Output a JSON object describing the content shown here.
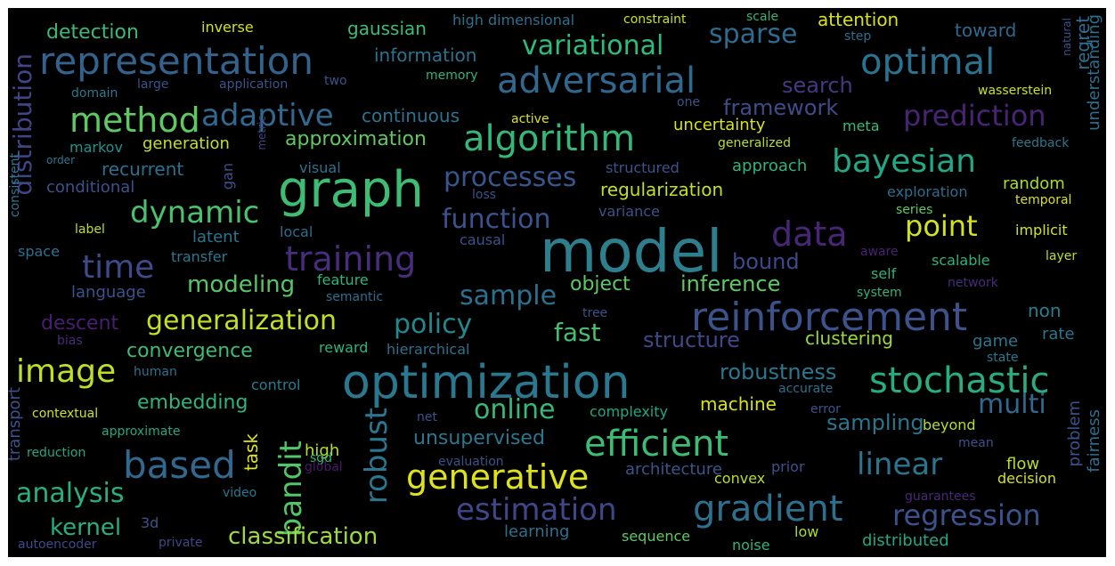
{
  "words": [
    {
      "text": "model",
      "color": "#2e7f8e",
      "rot": 0
    },
    {
      "text": "graph",
      "color": "#3fbc73",
      "rot": 0
    },
    {
      "text": "optimization",
      "color": "#2a788e",
      "rot": 0
    },
    {
      "text": "reinforcement",
      "color": "#3b528b",
      "rot": 0
    },
    {
      "text": "algorithm",
      "color": "#35b779",
      "rot": 0
    },
    {
      "text": "adversarial",
      "color": "#31688e",
      "rot": 0
    },
    {
      "text": "representation",
      "color": "#33638d",
      "rot": 0
    },
    {
      "text": "optimal",
      "color": "#2c728e",
      "rot": 0
    },
    {
      "text": "data",
      "color": "#482677",
      "rot": 0
    },
    {
      "text": "efficient",
      "color": "#3dbc74",
      "rot": 0
    },
    {
      "text": "based",
      "color": "#31688e",
      "rot": 0
    },
    {
      "text": "generative",
      "color": "#dde318",
      "rot": 0
    },
    {
      "text": "gradient",
      "color": "#2d708e",
      "rot": 0
    },
    {
      "text": "stochastic",
      "color": "#27ad81",
      "rot": 0
    },
    {
      "text": "image",
      "color": "#bddf26",
      "rot": 0
    },
    {
      "text": "method",
      "color": "#5ec962",
      "rot": 0
    },
    {
      "text": "training",
      "color": "#472d7b",
      "rot": 0
    },
    {
      "text": "bayesian",
      "color": "#22a884",
      "rot": 0
    },
    {
      "text": "time",
      "color": "#3e4a89",
      "rot": 0
    },
    {
      "text": "estimation",
      "color": "#3f4788",
      "rot": 0
    },
    {
      "text": "robust",
      "color": "#2a768e",
      "rot": -90
    },
    {
      "text": "bandit",
      "color": "#52c569",
      "rot": -90
    },
    {
      "text": "adaptive",
      "color": "#31688e",
      "rot": 0
    },
    {
      "text": "dynamic",
      "color": "#4ac16d",
      "rot": 0
    },
    {
      "text": "linear",
      "color": "#2c738e",
      "rot": 0
    },
    {
      "text": "prediction",
      "color": "#482475",
      "rot": 0
    },
    {
      "text": "regression",
      "color": "#3b528b",
      "rot": 0
    },
    {
      "text": "point",
      "color": "#d2e21b",
      "rot": 0
    },
    {
      "text": "analysis",
      "color": "#29af7f",
      "rot": 0
    },
    {
      "text": "variational",
      "color": "#2ebb7b",
      "rot": 0
    },
    {
      "text": "sparse",
      "color": "#2f6b8e",
      "rot": 0
    },
    {
      "text": "online",
      "color": "#37b878",
      "rot": 0
    },
    {
      "text": "processes",
      "color": "#39568c",
      "rot": 0
    },
    {
      "text": "multi",
      "color": "#31688e",
      "rot": 0
    },
    {
      "text": "function",
      "color": "#3b528b",
      "rot": 0
    },
    {
      "text": "policy",
      "color": "#24878e",
      "rot": 0
    },
    {
      "text": "sample",
      "color": "#2d708e",
      "rot": 0
    },
    {
      "text": "generalization",
      "color": "#c0df25",
      "rot": 0
    },
    {
      "text": "distribution",
      "color": "#414487",
      "rot": -90
    },
    {
      "text": "fast",
      "color": "#46c06f",
      "rot": 0
    },
    {
      "text": "framework",
      "color": "#3e4c8a",
      "rot": 0
    },
    {
      "text": "bound",
      "color": "#3e4989",
      "rot": 0
    },
    {
      "text": "structure",
      "color": "#3f4889",
      "rot": 0
    },
    {
      "text": "modeling",
      "color": "#56c667",
      "rot": 0
    },
    {
      "text": "kernel",
      "color": "#29af7f",
      "rot": 0
    },
    {
      "text": "classification",
      "color": "#a0da39",
      "rot": 0
    },
    {
      "text": "inference",
      "color": "#5ec962",
      "rot": 0
    },
    {
      "text": "search",
      "color": "#443983",
      "rot": 0
    },
    {
      "text": "sampling",
      "color": "#2a768e",
      "rot": 0
    },
    {
      "text": "robustness",
      "color": "#2a788e",
      "rot": 0
    },
    {
      "text": "unsupervised",
      "color": "#2a778e",
      "rot": 0
    },
    {
      "text": "object",
      "color": "#5ec962",
      "rot": 0
    },
    {
      "text": "embedding",
      "color": "#2fb47c",
      "rot": 0
    },
    {
      "text": "descent",
      "color": "#481f70",
      "rot": 0
    },
    {
      "text": "convergence",
      "color": "#3cbc74",
      "rot": 0
    },
    {
      "text": "approximation",
      "color": "#5ec962",
      "rot": 0
    },
    {
      "text": "regularization",
      "color": "#c2df23",
      "rot": 0
    },
    {
      "text": "detection",
      "color": "#3aba76",
      "rot": 0
    },
    {
      "text": "gaussian",
      "color": "#3dbc74",
      "rot": 0
    },
    {
      "text": "information",
      "color": "#2c728e",
      "rot": 0
    },
    {
      "text": "continuous",
      "color": "#2c738e",
      "rot": 0
    },
    {
      "text": "recurrent",
      "color": "#2e6f8e",
      "rot": 0
    },
    {
      "text": "uncertainty",
      "color": "#d8e219",
      "rot": 0
    },
    {
      "text": "clustering",
      "color": "#9bd93c",
      "rot": 0
    },
    {
      "text": "machine",
      "color": "#d8e219",
      "rot": 0
    },
    {
      "text": "approach",
      "color": "#2fb47c",
      "rot": 0
    },
    {
      "text": "task",
      "color": "#dde318",
      "rot": -90
    },
    {
      "text": "high",
      "color": "#bade28",
      "rot": 0
    },
    {
      "text": "architecture",
      "color": "#39568c",
      "rot": 0
    },
    {
      "text": "latent",
      "color": "#2a768e",
      "rot": 0
    },
    {
      "text": "conditional",
      "color": "#3b528b",
      "rot": 0
    },
    {
      "text": "generation",
      "color": "#c2df23",
      "rot": 0
    },
    {
      "text": "markov",
      "color": "#20928c",
      "rot": 0
    },
    {
      "text": "visual",
      "color": "#2c728e",
      "rot": 0
    },
    {
      "text": "transfer",
      "color": "#2a788e",
      "rot": 0
    },
    {
      "text": "local",
      "color": "#2e6d8e",
      "rot": 0
    },
    {
      "text": "feature",
      "color": "#2fb47c",
      "rot": 0
    },
    {
      "text": "language",
      "color": "#3b528b",
      "rot": 0
    },
    {
      "text": "causal",
      "color": "#3b528b",
      "rot": 0
    },
    {
      "text": "variance",
      "color": "#3b528b",
      "rot": 0
    },
    {
      "text": "self",
      "color": "#2db27d",
      "rot": 0
    },
    {
      "text": "random",
      "color": "#a8db34",
      "rot": 0
    },
    {
      "text": "scalable",
      "color": "#2db27d",
      "rot": 0
    },
    {
      "text": "exploration",
      "color": "#2e6d8e",
      "rot": 0
    },
    {
      "text": "regret",
      "color": "#2e6e8e",
      "rot": -90
    },
    {
      "text": "toward",
      "color": "#31688e",
      "rot": 0
    },
    {
      "text": "attention",
      "color": "#d8e219",
      "rot": 0
    },
    {
      "text": "meta",
      "color": "#3aba76",
      "rot": 0
    },
    {
      "text": "non",
      "color": "#287d8e",
      "rot": 0
    },
    {
      "text": "rate",
      "color": "#2a768e",
      "rot": 0
    },
    {
      "text": "game",
      "color": "#2a778e",
      "rot": 0
    },
    {
      "text": "control",
      "color": "#287c8e",
      "rot": 0
    },
    {
      "text": "complexity",
      "color": "#22a785",
      "rot": 0
    },
    {
      "text": "beyond",
      "color": "#b5de2b",
      "rot": 0
    },
    {
      "text": "flow",
      "color": "#b8de29",
      "rot": 0
    },
    {
      "text": "decision",
      "color": "#d5e21a",
      "rot": 0
    },
    {
      "text": "problem",
      "color": "#3b528b",
      "rot": -90
    },
    {
      "text": "fairness",
      "color": "#2d708e",
      "rot": -90
    },
    {
      "text": "understanding",
      "color": "#2d708e",
      "rot": -90
    },
    {
      "text": "transport",
      "color": "#3b528b",
      "rot": -90
    },
    {
      "text": "gan",
      "color": "#3b528b",
      "rot": -90
    },
    {
      "text": "consistent",
      "color": "#2a788e",
      "rot": -90
    },
    {
      "text": "metric",
      "color": "#414487",
      "rot": -90
    },
    {
      "text": "natural",
      "color": "#3b528b",
      "rot": -90
    },
    {
      "text": "learning",
      "color": "#2d708e",
      "rot": 0
    },
    {
      "text": "sequence",
      "color": "#5ec962",
      "rot": 0
    },
    {
      "text": "distributed",
      "color": "#22a884",
      "rot": 0
    },
    {
      "text": "noise",
      "color": "#2fb47c",
      "rot": 0
    },
    {
      "text": "low",
      "color": "#a8db34",
      "rot": 0
    },
    {
      "text": "3d",
      "color": "#3b528b",
      "rot": 0
    },
    {
      "text": "private",
      "color": "#3f4788",
      "rot": 0
    },
    {
      "text": "autoencoder",
      "color": "#3e4a89",
      "rot": 0
    },
    {
      "text": "video",
      "color": "#2a788e",
      "rot": 0
    },
    {
      "text": "convex",
      "color": "#bade28",
      "rot": 0
    },
    {
      "text": "prior",
      "color": "#3b528b",
      "rot": 0
    },
    {
      "text": "evaluation",
      "color": "#3b528b",
      "rot": 0
    },
    {
      "text": "sgd",
      "color": "#2ebb7b",
      "rot": 0
    },
    {
      "text": "global",
      "color": "#481a6c",
      "rot": 0
    },
    {
      "text": "net",
      "color": "#3b528b",
      "rot": 0
    },
    {
      "text": "reduction",
      "color": "#22a884",
      "rot": 0
    },
    {
      "text": "approximate",
      "color": "#22a884",
      "rot": 0
    },
    {
      "text": "contextual",
      "color": "#d2e21b",
      "rot": 0
    },
    {
      "text": "human",
      "color": "#2d708e",
      "rot": 0
    },
    {
      "text": "bias",
      "color": "#472c7a",
      "rot": 0
    },
    {
      "text": "reward",
      "color": "#2fb47c",
      "rot": 0
    },
    {
      "text": "hierarchical",
      "color": "#2d708e",
      "rot": 0
    },
    {
      "text": "tree",
      "color": "#3b528b",
      "rot": 0
    },
    {
      "text": "semantic",
      "color": "#2e6f8e",
      "rot": 0
    },
    {
      "text": "label",
      "color": "#bddf26",
      "rot": 0
    },
    {
      "text": "space",
      "color": "#2d708e",
      "rot": 0
    },
    {
      "text": "loss",
      "color": "#3b528b",
      "rot": 0
    },
    {
      "text": "structured",
      "color": "#3b528b",
      "rot": 0
    },
    {
      "text": "generalized",
      "color": "#b8de29",
      "rot": 0
    },
    {
      "text": "feedback",
      "color": "#2a788e",
      "rot": 0
    },
    {
      "text": "temporal",
      "color": "#d8e219",
      "rot": 0
    },
    {
      "text": "series",
      "color": "#5ec962",
      "rot": 0
    },
    {
      "text": "implicit",
      "color": "#d2e21b",
      "rot": 0
    },
    {
      "text": "layer",
      "color": "#bade28",
      "rot": 0
    },
    {
      "text": "network",
      "color": "#472c7a",
      "rot": 0
    },
    {
      "text": "system",
      "color": "#2fb47c",
      "rot": 0
    },
    {
      "text": "aware",
      "color": "#482173",
      "rot": 0
    },
    {
      "text": "state",
      "color": "#2a788e",
      "rot": 0
    },
    {
      "text": "accurate",
      "color": "#2d708e",
      "rot": 0
    },
    {
      "text": "error",
      "color": "#3b528b",
      "rot": 0
    },
    {
      "text": "mean",
      "color": "#3b528b",
      "rot": 0
    },
    {
      "text": "guarantees",
      "color": "#482878",
      "rot": 0
    },
    {
      "text": "wasserstein",
      "color": "#cae11f",
      "rot": 0
    },
    {
      "text": "one",
      "color": "#3b528b",
      "rot": 0
    },
    {
      "text": "active",
      "color": "#dde318",
      "rot": 0
    },
    {
      "text": "memory",
      "color": "#2fb47c",
      "rot": 0
    },
    {
      "text": "large",
      "color": "#3b528b",
      "rot": 0
    },
    {
      "text": "application",
      "color": "#3b528b",
      "rot": 0
    },
    {
      "text": "two",
      "color": "#3b528b",
      "rot": 0
    },
    {
      "text": "domain",
      "color": "#2a788e",
      "rot": 0
    },
    {
      "text": "order",
      "color": "#2a788e",
      "rot": 0
    },
    {
      "text": "inverse",
      "color": "#d2e21b",
      "rot": 0
    },
    {
      "text": "high dimensional",
      "color": "#2d708e",
      "rot": 0
    },
    {
      "text": "constraint",
      "color": "#cae11f",
      "rot": 0
    },
    {
      "text": "scale",
      "color": "#2fb47c",
      "rot": 0
    },
    {
      "text": "step",
      "color": "#2d708e",
      "rot": 0
    }
  ]
}
